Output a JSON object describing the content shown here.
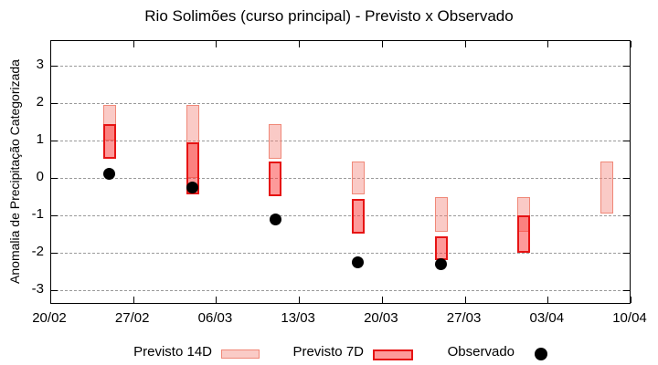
{
  "chart_data": {
    "type": "bar",
    "subtype": "forecast-range-boxes-with-observed-points",
    "title": "Rio Solimões (curso principal) - Previsto x Observado",
    "xlabel": "",
    "ylabel": "Anomalia de Precipitação Categorizada",
    "ylim": [
      -3.7,
      3.7
    ],
    "yticks": [
      3,
      2,
      1,
      0,
      -1,
      -2,
      -3
    ],
    "xtick_labels": [
      "20/02",
      "27/02",
      "06/03",
      "13/03",
      "20/03",
      "27/03",
      "03/04",
      "10/04"
    ],
    "xtick_days": [
      0,
      7,
      14,
      21,
      28,
      35,
      42,
      49
    ],
    "grid": "horizontal dashed gray gridlines at integer y values, no vertical gridlines",
    "legend_position": "bottom center, outside plot area",
    "colors": {
      "previsto_14d_fill": "#facbc6",
      "previsto_14d_border": "#f08878",
      "previsto_7d_fill": "#fd9898",
      "previsto_7d_border": "#e61414",
      "overlap_fill": "#f97c7a",
      "observado": "#000000",
      "gridline": "#9a9a9a"
    },
    "series": [
      {
        "name": "Previsto 14D",
        "style": "range-box"
      },
      {
        "name": "Previsto 7D",
        "style": "range-box"
      },
      {
        "name": "Observado",
        "style": "filled-point"
      }
    ],
    "groups": [
      {
        "date": "25/02",
        "day": 5,
        "previsto_14d": [
          1.0,
          1.95
        ],
        "previsto_7d": [
          0.5,
          1.45
        ],
        "observado": 0.1
      },
      {
        "date": "04/03",
        "day": 12,
        "previsto_14d": [
          0.0,
          1.95
        ],
        "previsto_7d": [
          -0.45,
          0.95
        ],
        "observado": -0.25
      },
      {
        "date": "11/03",
        "day": 19,
        "previsto_14d": [
          0.5,
          1.45
        ],
        "previsto_7d": [
          -0.5,
          0.45
        ],
        "observado": -1.1
      },
      {
        "date": "18/03",
        "day": 26,
        "previsto_14d": [
          -0.45,
          0.45
        ],
        "previsto_7d": [
          -1.5,
          -0.55
        ],
        "observado": -2.25
      },
      {
        "date": "25/03",
        "day": 33,
        "previsto_14d": [
          -1.45,
          -0.5
        ],
        "previsto_7d": [
          -2.2,
          -1.55
        ],
        "observado": -2.3
      },
      {
        "date": "01/04",
        "day": 40,
        "previsto_14d": [
          -1.45,
          -0.5
        ],
        "previsto_7d": [
          -2.0,
          -1.0
        ],
        "observado": null
      },
      {
        "date": "08/04",
        "day": 47,
        "previsto_14d": [
          -0.95,
          0.45
        ],
        "previsto_7d": null,
        "observado": null
      }
    ],
    "legend": [
      {
        "label": "Previsto 14D",
        "swatch": "light-pink-range-box"
      },
      {
        "label": "Previsto 7D",
        "swatch": "red-range-box"
      },
      {
        "label": "Observado",
        "swatch": "black-filled-circle"
      }
    ]
  }
}
